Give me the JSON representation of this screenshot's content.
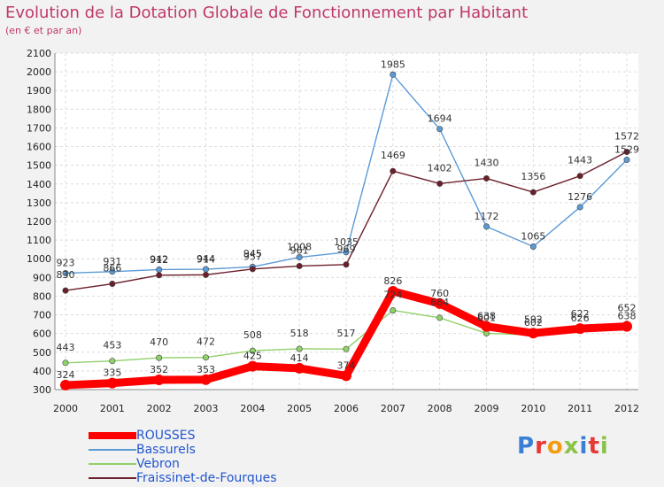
{
  "title": "Evolution de la Dotation Globale de Fonctionnement par Habitant",
  "subtitle": "(en € et par an)",
  "brand": {
    "text": "Proxiti",
    "letter_colors": [
      "#3a7fd6",
      "#e53935",
      "#f39c12",
      "#8bc34a",
      "#3a7fd6",
      "#e53935",
      "#8bc34a"
    ]
  },
  "chart_data": {
    "type": "line",
    "x": [
      "2000",
      "2001",
      "2002",
      "2003",
      "2004",
      "2005",
      "2006",
      "2007",
      "2008",
      "2009",
      "2010",
      "2011",
      "2012"
    ],
    "ylim": [
      300,
      2100
    ],
    "yticks": [
      300,
      400,
      500,
      600,
      700,
      800,
      900,
      1000,
      1100,
      1200,
      1300,
      1400,
      1500,
      1600,
      1700,
      1800,
      1900,
      2000,
      2100
    ],
    "grid": true,
    "legend_position": "bottom-left",
    "series": [
      {
        "name": "ROUSSES",
        "color": "#ff0000",
        "values": [
          324,
          335,
          352,
          353,
          425,
          414,
          374,
          826,
          760,
          638,
          602,
          626,
          638
        ]
      },
      {
        "name": "Bassurels",
        "color": "#5b9bd5",
        "values": [
          923,
          931,
          942,
          944,
          957,
          1008,
          1035,
          1985,
          1694,
          1172,
          1065,
          1276,
          1529
        ]
      },
      {
        "name": "Vebron",
        "color": "#8fd16a",
        "values": [
          443,
          453,
          470,
          472,
          508,
          518,
          517,
          724,
          684,
          601,
          592,
          622,
          652
        ]
      },
      {
        "name": "Fraissinet-de-Fourques",
        "color": "#6b1f2a",
        "values": [
          830,
          866,
          912,
          914,
          945,
          961,
          969,
          1469,
          1402,
          1430,
          1356,
          1443,
          1572
        ]
      }
    ]
  }
}
